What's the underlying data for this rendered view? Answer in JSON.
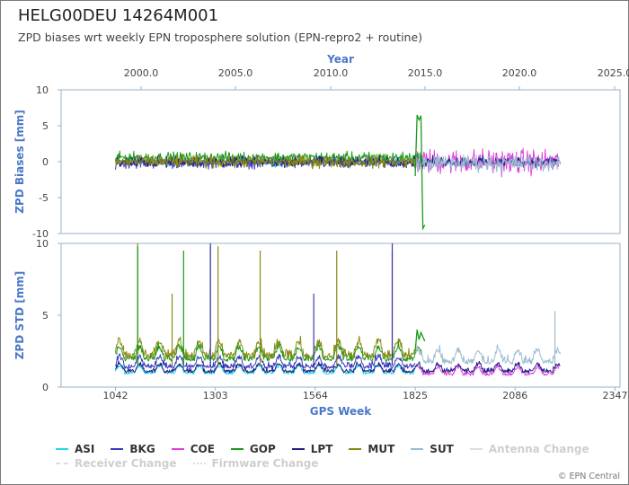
{
  "title": "HELG00DEU 14264M001",
  "subtitle": "ZPD biases wrt weekly EPN troposphere solution (EPN-repro2 + routine)",
  "credit": "© EPN Central",
  "chart_data": {
    "type": "line",
    "top_axis": {
      "label": "Year",
      "ticks": [
        "2000.0",
        "2005.0",
        "2010.0",
        "2015.0",
        "2020.0",
        "2025.0"
      ]
    },
    "bottom_axis": {
      "label": "GPS Week",
      "ticks": [
        "1042",
        "1303",
        "1564",
        "1825",
        "2086",
        "2347"
      ],
      "range": [
        900,
        2360
      ]
    },
    "panels": [
      {
        "ylabel": "ZPD Biases [mm]",
        "ylim": [
          -10,
          10
        ],
        "yticks": [
          "10",
          "5",
          "0",
          "-5",
          "-10"
        ]
      },
      {
        "ylabel": "ZPD STD [mm]",
        "ylim": [
          0,
          10
        ],
        "yticks": [
          "10",
          "5",
          "0"
        ]
      }
    ],
    "series": [
      {
        "name": "ASI",
        "color": "#22d8e8",
        "bias_range": [
          1042,
          1825
        ],
        "bias_level": 0.0,
        "bias_noise": 0.4,
        "std_range": [
          1042,
          1825
        ],
        "std_level": 0.9,
        "std_noise": 0.3
      },
      {
        "name": "BKG",
        "color": "#3a3ab8",
        "bias_range": [
          1042,
          1825
        ],
        "bias_level": -0.2,
        "bias_noise": 0.5,
        "std_range": [
          1042,
          1825
        ],
        "std_level": 1.3,
        "std_noise": 0.4
      },
      {
        "name": "COE",
        "color": "#e040e0",
        "bias_range": [
          1830,
          2200
        ],
        "bias_level": 0.0,
        "bias_noise": 1.2,
        "std_range": [
          1830,
          2200
        ],
        "std_level": 0.8,
        "std_noise": 0.3
      },
      {
        "name": "GOP",
        "color": "#1a9a1a",
        "bias_range": [
          1042,
          1845
        ],
        "bias_level": 0.6,
        "bias_noise": 0.5,
        "std_range": [
          1042,
          1845
        ],
        "std_level": 1.8,
        "std_noise": 0.5
      },
      {
        "name": "LPT",
        "color": "#24208a",
        "bias_range": [
          1042,
          2205
        ],
        "bias_level": 0.0,
        "bias_noise": 0.5,
        "std_range": [
          1042,
          2205
        ],
        "std_level": 1.0,
        "std_noise": 0.3
      },
      {
        "name": "MUT",
        "color": "#8a8a14",
        "bias_range": [
          1042,
          1825
        ],
        "bias_level": 0.0,
        "bias_noise": 0.6,
        "std_range": [
          1042,
          1825
        ],
        "std_level": 2.0,
        "std_noise": 0.6
      },
      {
        "name": "SUT",
        "color": "#9cbcd0",
        "bias_range": [
          1825,
          2205
        ],
        "bias_level": -0.2,
        "bias_noise": 0.8,
        "std_range": [
          1825,
          2205
        ],
        "std_level": 1.6,
        "std_noise": 0.5
      }
    ],
    "spikes": [
      {
        "series": "MUT",
        "week": 1100,
        "std": 10.0
      },
      {
        "series": "GOP",
        "week": 1100,
        "std": 9.8
      },
      {
        "series": "GOP",
        "week": 1220,
        "std": 9.5
      },
      {
        "series": "MUT",
        "week": 1190,
        "std": 6.5
      },
      {
        "series": "MUT",
        "week": 1290,
        "std": 9.8
      },
      {
        "series": "BKG",
        "week": 1290,
        "std": 10.0
      },
      {
        "series": "MUT",
        "week": 1310,
        "std": 9.8
      },
      {
        "series": "MUT",
        "week": 1420,
        "std": 9.5
      },
      {
        "series": "BKG",
        "week": 1560,
        "std": 6.5
      },
      {
        "series": "MUT",
        "week": 1620,
        "std": 9.5
      },
      {
        "series": "MUT",
        "week": 1765,
        "std": 9.5
      },
      {
        "series": "BKG",
        "week": 1765,
        "std": 10.0
      },
      {
        "series": "SUT",
        "week": 2190,
        "std": 5.3
      }
    ],
    "gop_jump": {
      "bias_weeks": [
        1825,
        1830,
        1835,
        1840,
        1845,
        1850
      ],
      "bias_values": [
        -2.0,
        6.5,
        5.8,
        6.4,
        -9.3,
        -8.8
      ],
      "std_values": [
        2.5,
        4.0,
        3.3,
        3.8,
        3.5,
        3.2
      ]
    },
    "legend": {
      "entries": [
        {
          "label": "ASI",
          "color": "#22d8e8",
          "style": "solid",
          "faded": false
        },
        {
          "label": "BKG",
          "color": "#3a3ab8",
          "style": "solid",
          "faded": false
        },
        {
          "label": "COE",
          "color": "#e040e0",
          "style": "solid",
          "faded": false
        },
        {
          "label": "GOP",
          "color": "#1a9a1a",
          "style": "solid",
          "faded": false
        },
        {
          "label": "LPT",
          "color": "#24208a",
          "style": "solid",
          "faded": false
        },
        {
          "label": "MUT",
          "color": "#8a8a14",
          "style": "solid",
          "faded": false
        },
        {
          "label": "SUT",
          "color": "#9cbcd0",
          "style": "solid",
          "faded": false
        },
        {
          "label": "Antenna Change",
          "color": "#dddddd",
          "style": "solid",
          "faded": true
        }
      ],
      "entries_row2": [
        {
          "label": "Receiver Change",
          "color": "#dddddd",
          "style": "dashed",
          "faded": true
        },
        {
          "label": "Firmware Change",
          "color": "#dddddd",
          "style": "dotted",
          "faded": true
        }
      ]
    }
  }
}
